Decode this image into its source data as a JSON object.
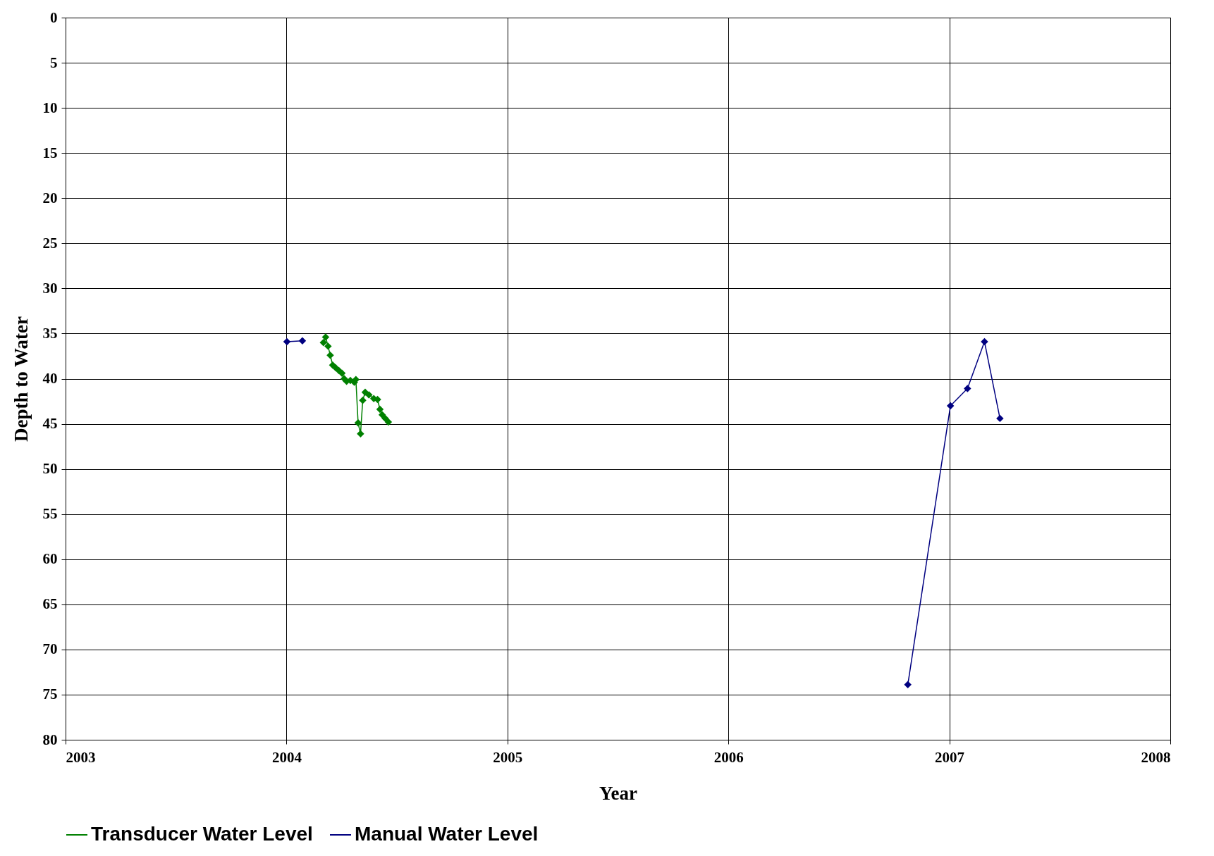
{
  "chart_data": {
    "type": "line",
    "xlabel": "Year",
    "ylabel": "Depth to Water",
    "xlim": [
      2003,
      2008
    ],
    "xticks": [
      2003,
      2004,
      2005,
      2006,
      2007,
      2008
    ],
    "ylim": [
      80,
      0
    ],
    "yticks": [
      0,
      5,
      10,
      15,
      20,
      25,
      30,
      35,
      40,
      45,
      50,
      55,
      60,
      65,
      70,
      75,
      80
    ],
    "grid": true,
    "legend": "bottom",
    "marker": "diamond",
    "line_style": "solid",
    "series": [
      {
        "name": "Transducer Water Level",
        "color": "#008000",
        "x": [
          2004.167,
          2004.177,
          2004.188,
          2004.198,
          2004.209,
          2004.223,
          2004.237,
          2004.251,
          2004.261,
          2004.272,
          2004.289,
          2004.307,
          2004.314,
          2004.324,
          2004.335,
          2004.345,
          2004.356,
          2004.373,
          2004.395,
          2004.412,
          2004.423,
          2004.433,
          2004.447,
          2004.461
        ],
        "values": [
          36.0,
          35.4,
          36.4,
          37.4,
          38.5,
          38.8,
          39.1,
          39.4,
          40.0,
          40.3,
          40.2,
          40.4,
          40.1,
          44.9,
          46.1,
          42.4,
          41.5,
          41.8,
          42.2,
          42.3,
          43.4,
          44.0,
          44.4,
          44.8
        ]
      },
      {
        "name": "Manual Water Level",
        "color": "#000080",
        "x": [
          2004.002,
          2004.072,
          2005.5,
          2006.812,
          2007.005,
          2007.082,
          2007.159,
          2007.229
        ],
        "values": [
          35.9,
          35.8,
          null,
          73.9,
          43.0,
          41.1,
          35.9,
          44.4
        ]
      }
    ]
  }
}
